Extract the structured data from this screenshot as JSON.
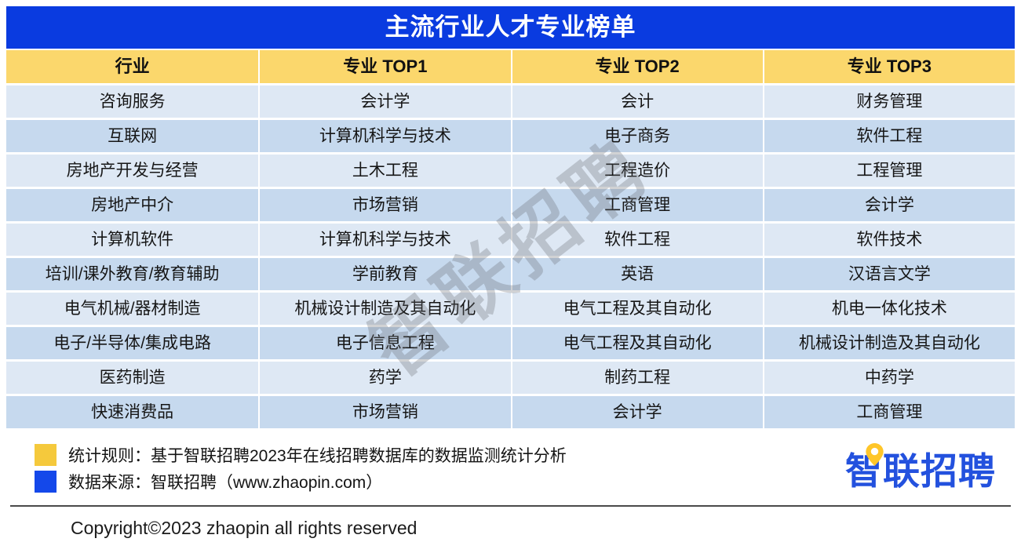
{
  "chart_data": {
    "type": "table",
    "title": "主流行业人才专业榜单",
    "columns": [
      "行业",
      "专业 TOP1",
      "专业 TOP2",
      "专业 TOP3"
    ],
    "rows": [
      [
        "咨询服务",
        "会计学",
        "会计",
        "财务管理"
      ],
      [
        "互联网",
        "计算机科学与技术",
        "电子商务",
        "软件工程"
      ],
      [
        "房地产开发与经营",
        "土木工程",
        "工程造价",
        "工程管理"
      ],
      [
        "房地产中介",
        "市场营销",
        "工商管理",
        "会计学"
      ],
      [
        "计算机软件",
        "计算机科学与技术",
        "软件工程",
        "软件技术"
      ],
      [
        "培训/课外教育/教育辅助",
        "学前教育",
        "英语",
        "汉语言文学"
      ],
      [
        "电气机械/器材制造",
        "机械设计制造及其自动化",
        "电气工程及其自动化",
        "机电一体化技术"
      ],
      [
        "电子/半导体/集成电路",
        "电子信息工程",
        "电气工程及其自动化",
        "机械设计制造及其自动化"
      ],
      [
        "医药制造",
        "药学",
        "制药工程",
        "中药学"
      ],
      [
        "快速消费品",
        "市场营销",
        "会计学",
        "工商管理"
      ]
    ]
  },
  "watermark": "智联招聘",
  "legend": {
    "items": [
      {
        "icon": "yellow-square",
        "color": "#F5C93C",
        "text": "统计规则：基于智联招聘2023年在线招聘数据库的数据监测统计分析"
      },
      {
        "icon": "blue-square",
        "color": "#1448EA",
        "text": "数据来源：智联招聘（www.zhaopin.com）"
      }
    ]
  },
  "logo": {
    "text": "智联招聘",
    "color": "#2351DE",
    "pin_color": "#FFC629"
  },
  "copyright": "Copyright©2023 zhaopin all rights reserved",
  "colors": {
    "title_bar": "#0A3BE0",
    "header_row": "#FBD76C",
    "row_light": "#DEE8F4",
    "row_dark": "#C6D9EE"
  }
}
